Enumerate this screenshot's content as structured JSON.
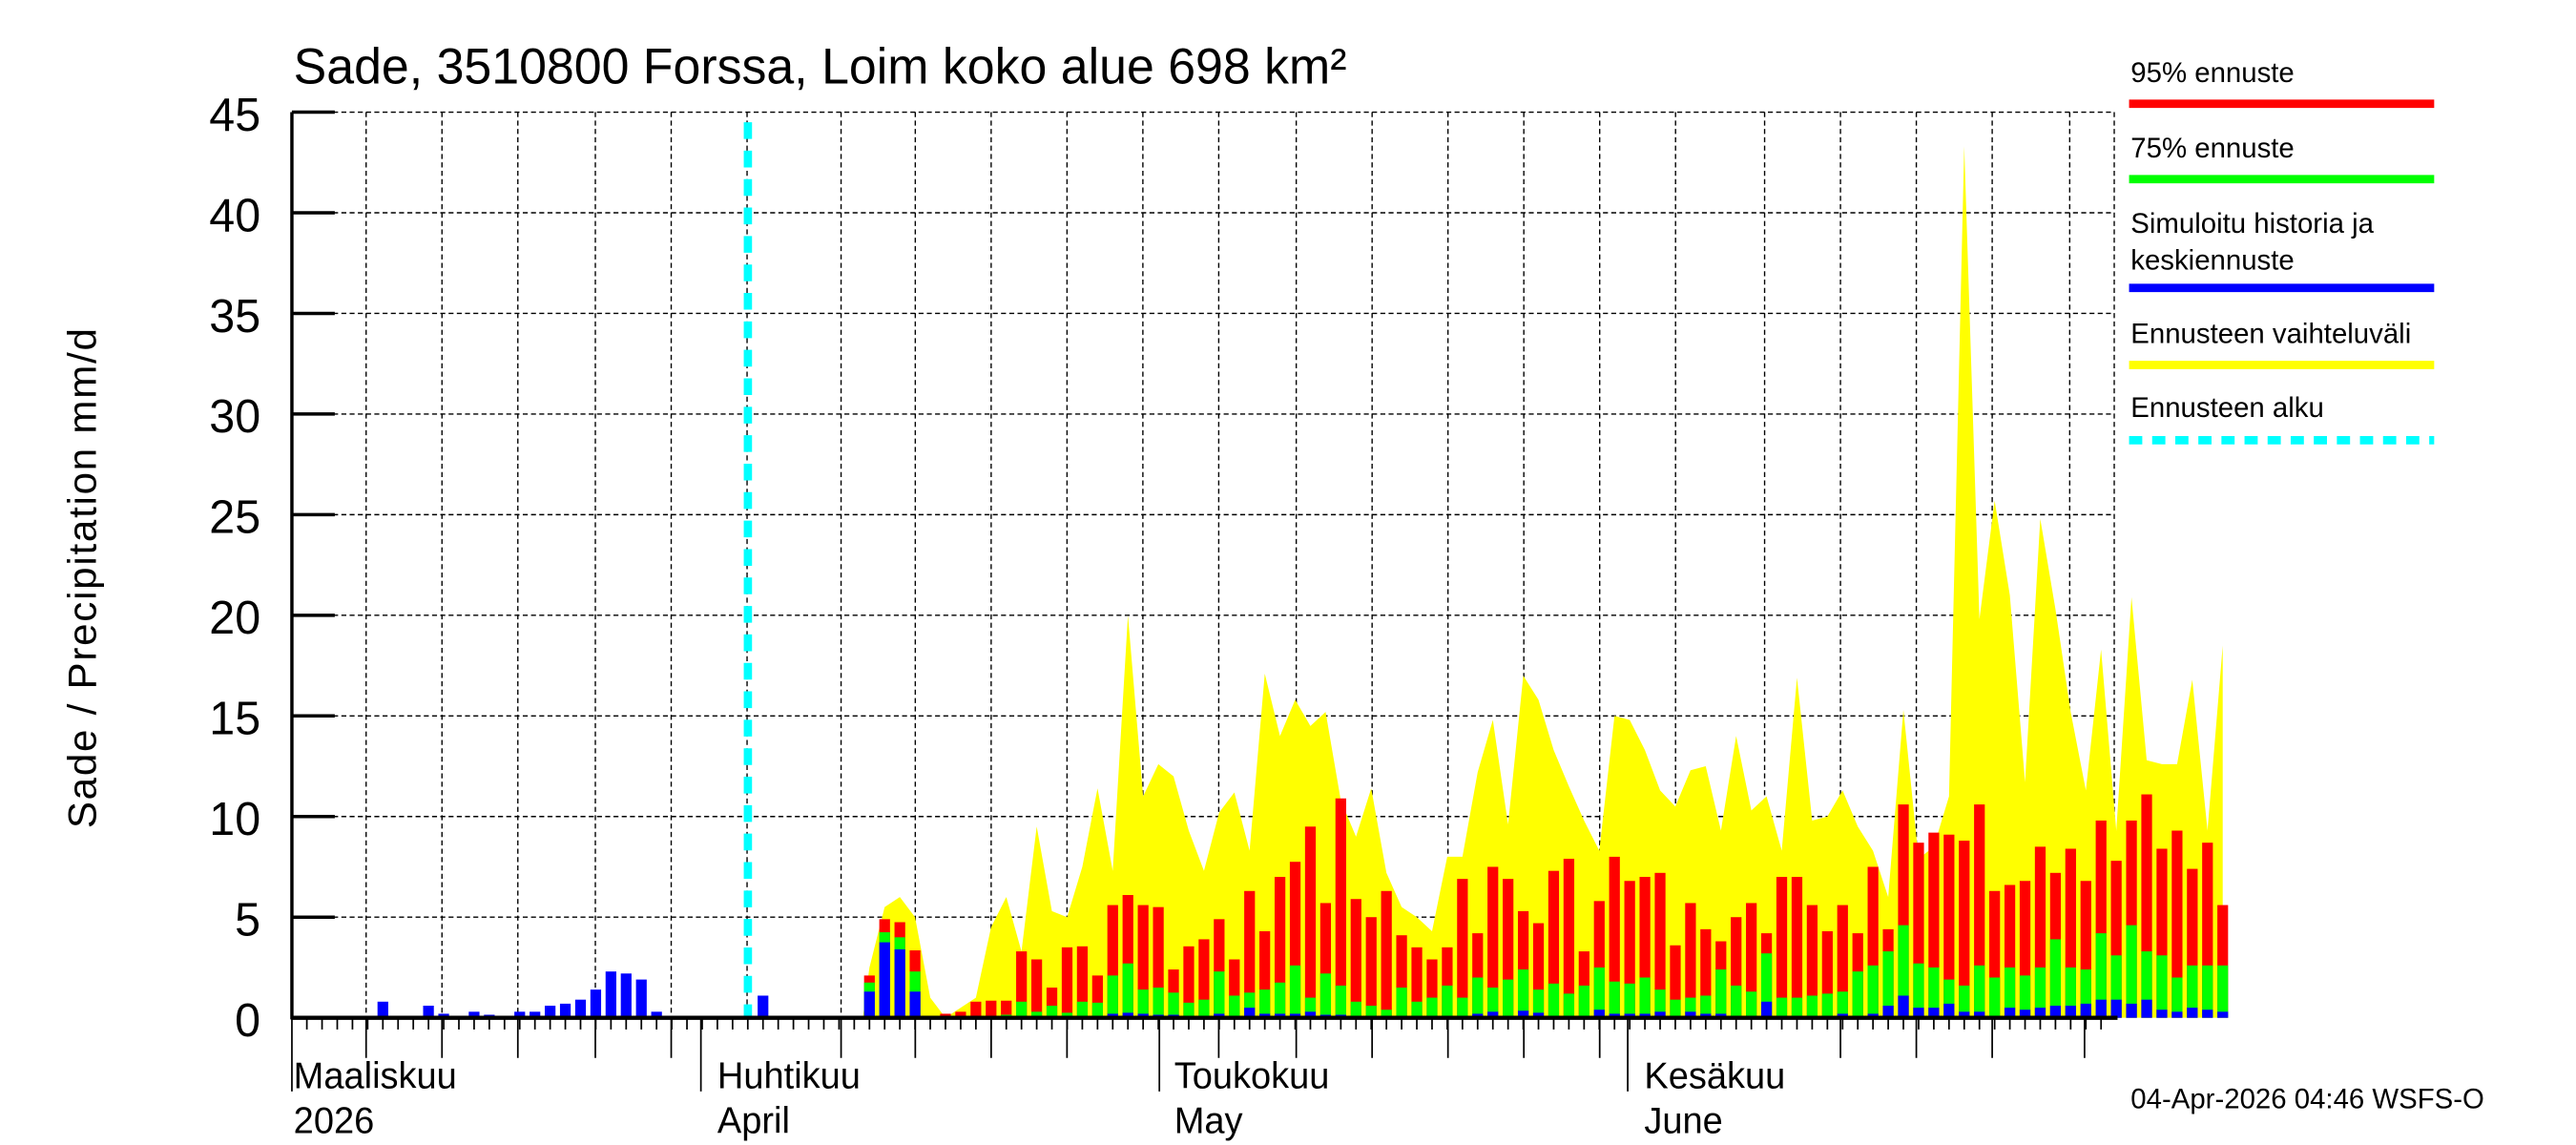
{
  "chart_data": {
    "type": "bar",
    "title": "Sade, 3510800 Forssa, Loim koko alue 698 km²",
    "ylabel": "Sade / Precipitation   mm/d",
    "xlabel": "",
    "ylim": [
      0,
      45
    ],
    "yticks": [
      0,
      5,
      10,
      15,
      20,
      25,
      30,
      35,
      40,
      45
    ],
    "grid": true,
    "legend_position": "right",
    "x_month_labels": [
      {
        "line1": "Maaliskuu",
        "line2": "2026"
      },
      {
        "line1": "Huhtikuu",
        "line2": "April"
      },
      {
        "line1": "Toukokuu",
        "line2": "May"
      },
      {
        "line1": "Kesäkuu",
        "line2": "June"
      }
    ],
    "forecast_start": "2026-04-04",
    "history": {
      "name": "Simuloitu historia ja keskiennuste",
      "start_date": "2026-02-28",
      "values": [
        0,
        0,
        0,
        0.8,
        0.05,
        0.05,
        0.6,
        0.2,
        0.05,
        0.3,
        0.15,
        0.05,
        0.3,
        0.3,
        0.6,
        0.7,
        0.9,
        1.4,
        2.3,
        2.2,
        1.9,
        0.3,
        0.05,
        0.05,
        0.05,
        0.05,
        0.05,
        0.05,
        1.1,
        0.05
      ]
    },
    "forecast": {
      "start_date": "2026-04-04",
      "series": [
        {
          "name": "95% ennuste",
          "color": "#ff0000",
          "values": [
            2.1,
            4.9,
            4.75,
            3.35,
            0.05,
            0.2,
            0.3,
            0.8,
            0.85,
            0.85,
            3.3,
            2.9,
            1.5,
            3.5,
            3.55,
            2.1,
            5.6,
            6.1,
            5.6,
            5.5,
            2.4,
            3.55,
            3.9,
            4.9,
            2.9,
            6.3,
            4.3,
            7.0,
            7.75,
            9.5,
            5.7,
            10.9,
            5.9,
            5.0,
            6.3,
            4.1,
            3.5,
            2.9,
            3.5,
            6.9,
            4.2,
            7.5,
            6.9,
            5.3,
            4.7,
            7.3,
            7.9,
            3.3,
            5.8,
            8.0,
            6.8,
            7.0,
            7.2,
            3.6,
            5.7,
            4.4,
            3.8,
            5.0,
            5.7,
            4.2,
            7.0,
            7.0,
            5.6,
            4.3,
            5.6,
            4.2,
            7.5,
            4.4,
            10.6,
            8.7,
            9.2,
            9.1,
            8.8,
            10.6,
            6.3,
            6.6,
            6.8,
            8.5,
            7.2,
            8.4,
            6.8,
            9.8,
            7.8,
            9.8,
            11.1,
            8.4,
            9.3,
            7.4,
            8.7,
            5.6
          ]
        },
        {
          "name": "75% ennuste",
          "color": "#00ff00",
          "values": [
            1.75,
            4.25,
            4.0,
            2.3,
            0.02,
            0.05,
            0.05,
            0.1,
            0.1,
            0.15,
            0.8,
            0.3,
            0.6,
            0.25,
            0.8,
            0.75,
            2.1,
            2.7,
            1.4,
            1.5,
            1.25,
            0.75,
            0.9,
            2.3,
            1.1,
            1.25,
            1.4,
            1.75,
            2.6,
            1.0,
            2.2,
            1.6,
            0.8,
            0.6,
            0.4,
            1.5,
            0.8,
            1.0,
            1.6,
            1.0,
            2.0,
            1.5,
            1.9,
            2.4,
            1.4,
            1.7,
            1.2,
            1.6,
            2.5,
            1.8,
            1.7,
            2.0,
            1.4,
            0.9,
            1.0,
            1.1,
            2.4,
            1.6,
            1.3,
            3.2,
            1.0,
            1.0,
            1.1,
            1.2,
            1.3,
            2.3,
            2.6,
            3.3,
            4.6,
            2.7,
            2.5,
            1.9,
            1.6,
            2.6,
            2.0,
            2.5,
            2.1,
            2.5,
            3.9,
            2.5,
            2.4,
            4.2,
            3.1,
            4.6,
            3.3,
            3.1,
            2.0,
            2.6,
            2.6,
            2.6
          ]
        },
        {
          "name": "Simuloitu historia ja keskiennuste",
          "color": "#0000ff",
          "values": [
            1.3,
            3.75,
            3.4,
            1.3,
            0.0,
            0.0,
            0.0,
            0.0,
            0.0,
            0.0,
            0.05,
            0.05,
            0.05,
            0.05,
            0.05,
            0.1,
            0.2,
            0.25,
            0.2,
            0.15,
            0.15,
            0.1,
            0.1,
            0.2,
            0.1,
            0.5,
            0.2,
            0.2,
            0.2,
            0.3,
            0.15,
            0.15,
            0.1,
            0.05,
            0.1,
            0.1,
            0.05,
            0.05,
            0.1,
            0.1,
            0.2,
            0.3,
            0.1,
            0.35,
            0.25,
            0.1,
            0.05,
            0.1,
            0.4,
            0.2,
            0.2,
            0.2,
            0.3,
            0.1,
            0.3,
            0.2,
            0.2,
            0.1,
            0.1,
            0.8,
            0.1,
            0.1,
            0.1,
            0.1,
            0.2,
            0.1,
            0.2,
            0.6,
            1.1,
            0.5,
            0.5,
            0.7,
            0.3,
            0.3,
            0.1,
            0.5,
            0.4,
            0.5,
            0.6,
            0.6,
            0.7,
            0.9,
            0.9,
            0.7,
            0.9,
            0.4,
            0.3,
            0.5,
            0.4,
            0.3
          ]
        },
        {
          "name": "Ennusteen vaihteluväli",
          "color": "#ffff00",
          "type": "area",
          "values": [
            2.5,
            5.5,
            6.0,
            5.0,
            1.0,
            0.0,
            0.5,
            1.0,
            4.5,
            6.0,
            3.3,
            9.5,
            5.3,
            5.0,
            7.5,
            11.4,
            7.3,
            20.0,
            11.0,
            12.6,
            12.0,
            9.3,
            7.3,
            10.2,
            11.2,
            8.3,
            17.1,
            14.0,
            15.8,
            14.5,
            15.2,
            10.8,
            9.0,
            11.4,
            7.2,
            5.5,
            5.0,
            4.3,
            8.0,
            8.0,
            12.2,
            14.8,
            9.6,
            17.0,
            15.8,
            13.3,
            11.5,
            9.8,
            8.3,
            15.0,
            14.8,
            13.3,
            11.3,
            10.5,
            12.3,
            12.5,
            9.3,
            14.0,
            10.3,
            11.0,
            8.3,
            16.9,
            9.8,
            10.0,
            11.3,
            9.5,
            8.3,
            6.0,
            15.3,
            7.9,
            8.5,
            11.0,
            43.3,
            19.8,
            25.7,
            21.0,
            11.7,
            24.8,
            20.3,
            15.2,
            11.3,
            18.3,
            9.3,
            20.9,
            12.8,
            12.6,
            12.6,
            16.8,
            9.3,
            18.5
          ]
        },
        {
          "name": "Ennusteen alku",
          "color": "#00ffff",
          "type": "vline",
          "value": "2026-04-04"
        }
      ]
    }
  },
  "header": {
    "title": "Sade, 3510800 Forssa, Loim koko alue 698 km²"
  },
  "axes": {
    "y_label": "Sade / Precipitation   mm/d",
    "y_ticks": [
      "0",
      "5",
      "10",
      "15",
      "20",
      "25",
      "30",
      "35",
      "40",
      "45"
    ],
    "x_months": [
      {
        "line1": "Maaliskuu",
        "line2": "2026"
      },
      {
        "line1": "Huhtikuu",
        "line2": "April"
      },
      {
        "line1": "Toukokuu",
        "line2": "May"
      },
      {
        "line1": "Kesäkuu",
        "line2": "June"
      }
    ]
  },
  "legend": {
    "items": [
      {
        "label": "95% ennuste",
        "color": "#ff0000",
        "style": "solid"
      },
      {
        "label": "75% ennuste",
        "color": "#00ff00",
        "style": "solid"
      },
      {
        "label": "Simuloitu historia ja",
        "label2": "keskiennuste",
        "color": "#0000ff",
        "style": "solid"
      },
      {
        "label": "Ennusteen vaihteluväli",
        "color": "#ffff00",
        "style": "solid"
      },
      {
        "label": "Ennusteen alku",
        "color": "#00ffff",
        "style": "dashed"
      }
    ]
  },
  "footer": {
    "timestamp": "04-Apr-2026 04:46 WSFS-O"
  },
  "colors": {
    "p95": "#ff0000",
    "p75": "#00ff00",
    "mean": "#0000ff",
    "range": "#ffff00",
    "forecast_start": "#00ffff",
    "axis": "#000000"
  }
}
